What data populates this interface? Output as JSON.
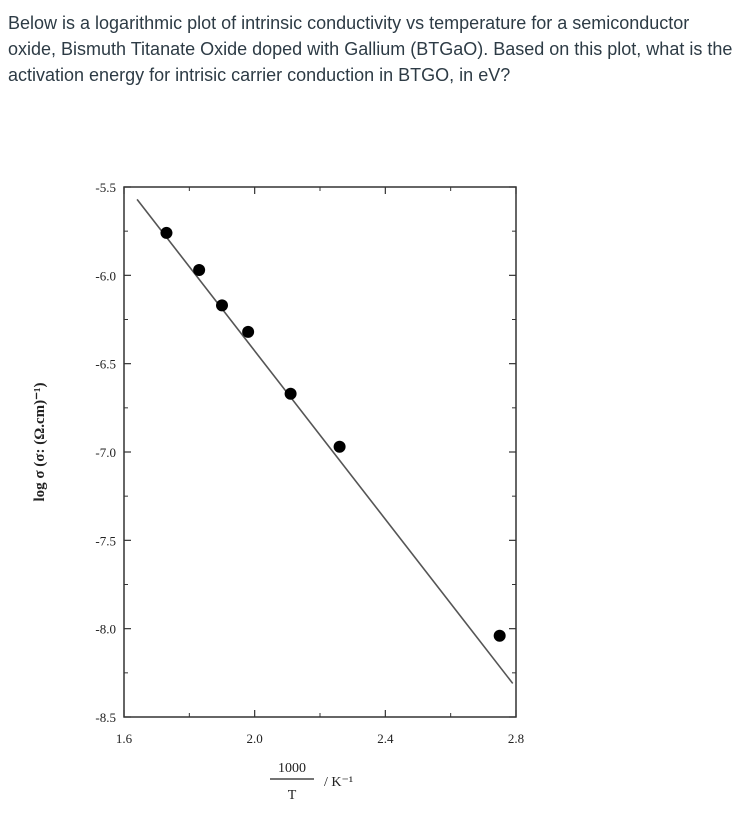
{
  "question": {
    "text": "Below is a logarithmic plot of intrinsic conductivity vs temperature for a semiconductor oxide, Bismuth Titanate Oxide doped with Gallium (BTGaO).  Based on this plot, what is the activation energy for intrisic carrier conduction in BTGO, in eV?"
  },
  "chart_data": {
    "type": "scatter",
    "title": "",
    "ylabel": "log σ  (σ: (Ω.cm)⁻¹)",
    "xlabel_numerator": "1000",
    "xlabel_denominator": "T",
    "xlabel_unit": "/ K⁻¹",
    "xlim": [
      1.6,
      2.8
    ],
    "ylim": [
      -8.5,
      -5.5
    ],
    "xticks": [
      1.6,
      2.0,
      2.4,
      2.8
    ],
    "xtick_labels": [
      "1.6",
      "2.0",
      "2.4",
      "2.8"
    ],
    "yticks": [
      -5.5,
      -6.0,
      -6.5,
      -7.0,
      -7.5,
      -8.0,
      -8.5
    ],
    "ytick_labels": [
      "-5.5",
      "-6.0",
      "-6.5",
      "-7.0",
      "-7.5",
      "-8.0",
      "-8.5"
    ],
    "grid": false,
    "points": [
      {
        "x": 1.73,
        "y": -5.76
      },
      {
        "x": 1.83,
        "y": -5.97
      },
      {
        "x": 1.9,
        "y": -6.17
      },
      {
        "x": 1.98,
        "y": -6.32
      },
      {
        "x": 2.11,
        "y": -6.67
      },
      {
        "x": 2.26,
        "y": -6.97
      },
      {
        "x": 2.75,
        "y": -8.04
      }
    ],
    "fit_line": {
      "x": [
        1.64,
        2.79
      ],
      "y": [
        -5.57,
        -8.31
      ]
    }
  }
}
